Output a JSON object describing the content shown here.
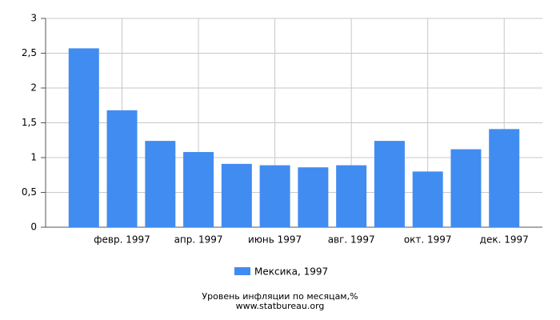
{
  "chart_data": {
    "type": "bar",
    "categories": [
      null,
      "февр. 1997",
      null,
      "апр. 1997",
      null,
      "июнь 1997",
      null,
      "авг. 1997",
      null,
      "окт. 1997",
      null,
      "дек. 1997"
    ],
    "series": [
      {
        "name": "Мексика, 1997",
        "color": "#418cf0",
        "values": [
          2.57,
          1.68,
          1.24,
          1.08,
          0.91,
          0.89,
          0.86,
          0.89,
          1.24,
          0.8,
          1.12,
          1.41
        ]
      }
    ],
    "ylim": [
      0,
      3
    ],
    "yticks": [
      0,
      {
        "value": 0.5,
        "label": "0,5"
      },
      1,
      {
        "value": 1.5,
        "label": "1,5"
      },
      2,
      {
        "value": 2.5,
        "label": "2,5"
      },
      3
    ],
    "grid": true,
    "footer": [
      "Уровень инфляции по месяцам,%",
      "www.statbureau.org"
    ]
  }
}
